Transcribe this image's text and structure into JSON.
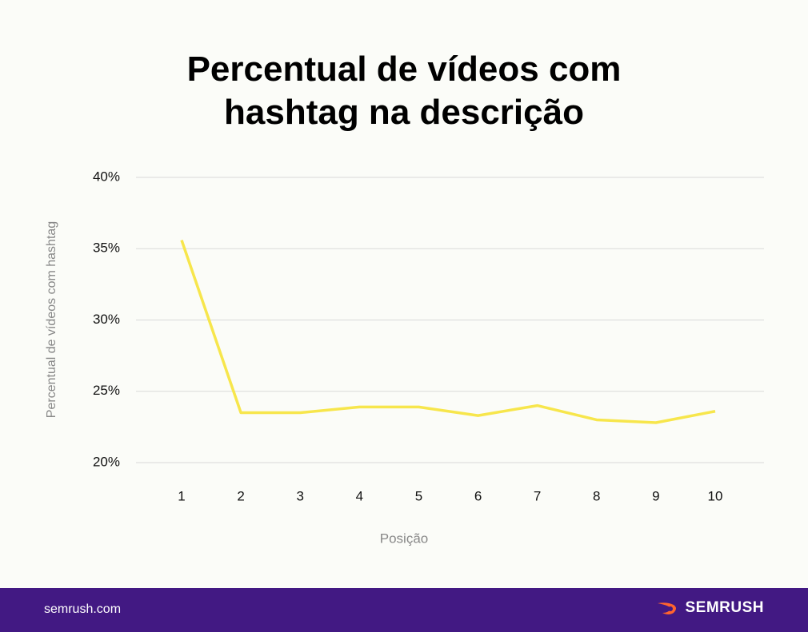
{
  "chart_data": {
    "type": "line",
    "title": "Percentual de vídeos com hashtag na descrição",
    "x_label": "Posição",
    "y_label": "Percentual de vídeos com hashtag",
    "categories": [
      "1",
      "2",
      "3",
      "4",
      "5",
      "6",
      "7",
      "8",
      "9",
      "10"
    ],
    "series": [
      {
        "name": "Percentual de vídeos com hashtag",
        "color": "#f7e64c",
        "values": [
          35.6,
          23.5,
          23.5,
          23.9,
          23.9,
          23.3,
          24.0,
          23.0,
          22.8,
          23.6
        ]
      }
    ],
    "ylim": [
      20,
      40
    ],
    "yticks": [
      {
        "value": 20,
        "label": "20%"
      },
      {
        "value": 25,
        "label": "25%"
      },
      {
        "value": 30,
        "label": "30%"
      },
      {
        "value": 35,
        "label": "35%"
      },
      {
        "value": 40,
        "label": "40%"
      }
    ],
    "grid": true,
    "legend": false
  },
  "footer": {
    "site": "semrush.com",
    "brand": "SEMRUSH"
  }
}
